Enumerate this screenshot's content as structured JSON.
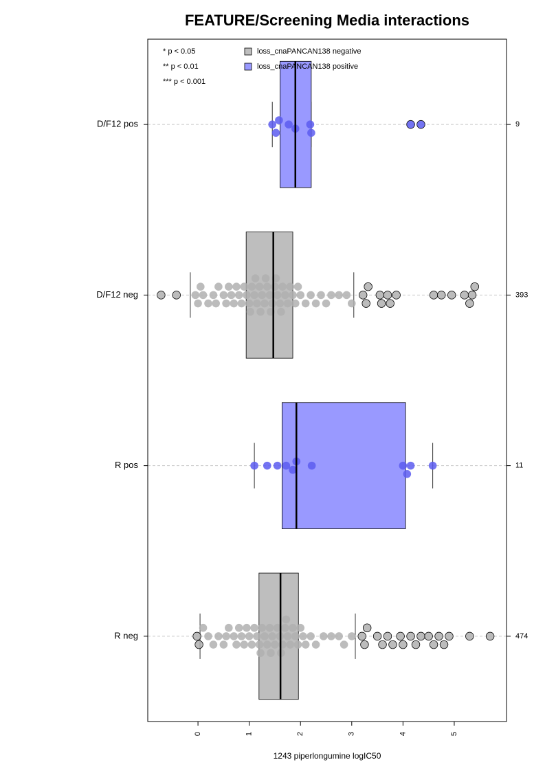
{
  "chart_data": {
    "type": "boxplot",
    "title": "FEATURE/Screening Media interactions",
    "xlabel": "1243 piperlongumine logIC50",
    "xlim": [
      -0.98,
      6.02
    ],
    "xticks": [
      0,
      1,
      2,
      3,
      4,
      5
    ],
    "annotations": [
      "* p < 0.05",
      "** p < 0.01",
      "*** p < 0.001"
    ],
    "series": [
      {
        "name": "loss_cnaPANCAN138 negative",
        "color": "#bebebe"
      },
      {
        "name": "loss_cnaPANCAN138 positive",
        "color": "#9999ff"
      }
    ],
    "groups": [
      {
        "label": "D/F12 pos",
        "n": 9,
        "color": "#9999ff",
        "point_color": "#5c5cf0",
        "stats": {
          "whisker_low": 1.45,
          "q1": 1.6,
          "median": 1.9,
          "q3": 2.21,
          "whisker_high": 2.21
        },
        "points": [
          1.45,
          1.52,
          1.58,
          1.77,
          1.9,
          2.19,
          2.21,
          4.15,
          4.35
        ]
      },
      {
        "label": "D/F12 neg",
        "n": 393,
        "color": "#bebebe",
        "point_color": "#b0b0b0",
        "stats": {
          "whisker_low": -0.15,
          "q1": 0.94,
          "median": 1.47,
          "q3": 1.85,
          "whisker_high": 3.04
        },
        "points": [
          -0.72,
          -0.42,
          -0.05,
          0.0,
          0.05,
          0.1,
          0.2,
          0.3,
          0.35,
          0.4,
          0.5,
          0.55,
          0.6,
          0.65,
          0.7,
          0.75,
          0.8,
          0.85,
          0.9,
          0.95,
          1.0,
          1.02,
          1.05,
          1.1,
          1.12,
          1.15,
          1.2,
          1.22,
          1.25,
          1.3,
          1.32,
          1.35,
          1.4,
          1.42,
          1.45,
          1.5,
          1.52,
          1.55,
          1.6,
          1.62,
          1.65,
          1.7,
          1.75,
          1.8,
          1.85,
          1.9,
          1.95,
          2.0,
          2.1,
          2.2,
          2.3,
          2.4,
          2.5,
          2.6,
          2.75,
          2.9,
          3.0,
          3.22,
          3.28,
          3.32,
          3.55,
          3.58,
          3.7,
          3.75,
          3.87,
          4.6,
          4.75,
          4.95,
          5.2,
          5.3,
          5.35,
          5.4
        ]
      },
      {
        "label": "R pos",
        "n": 11,
        "color": "#9999ff",
        "point_color": "#5c5cf0",
        "stats": {
          "whisker_low": 1.1,
          "q1": 1.64,
          "median": 1.92,
          "q3": 4.05,
          "whisker_high": 4.58
        },
        "points": [
          1.1,
          1.35,
          1.55,
          1.72,
          1.85,
          1.92,
          2.22,
          4.0,
          4.08,
          4.15,
          4.58
        ]
      },
      {
        "label": "R neg",
        "n": 474,
        "color": "#bebebe",
        "point_color": "#b0b0b0",
        "stats": {
          "whisker_low": 0.04,
          "q1": 1.19,
          "median": 1.61,
          "q3": 1.96,
          "whisker_high": 3.07
        },
        "points": [
          -0.02,
          0.02,
          0.1,
          0.2,
          0.3,
          0.4,
          0.5,
          0.55,
          0.6,
          0.7,
          0.75,
          0.8,
          0.85,
          0.9,
          0.95,
          1.0,
          1.05,
          1.1,
          1.15,
          1.2,
          1.22,
          1.25,
          1.3,
          1.35,
          1.4,
          1.42,
          1.45,
          1.5,
          1.55,
          1.6,
          1.62,
          1.65,
          1.7,
          1.72,
          1.75,
          1.8,
          1.85,
          1.9,
          1.95,
          2.0,
          2.05,
          2.1,
          2.2,
          2.3,
          2.45,
          2.6,
          2.75,
          2.85,
          3.0,
          3.2,
          3.25,
          3.3,
          3.5,
          3.6,
          3.7,
          3.8,
          3.95,
          4.0,
          4.15,
          4.25,
          4.35,
          4.5,
          4.6,
          4.7,
          4.8,
          4.9,
          5.3,
          5.7
        ]
      }
    ]
  }
}
